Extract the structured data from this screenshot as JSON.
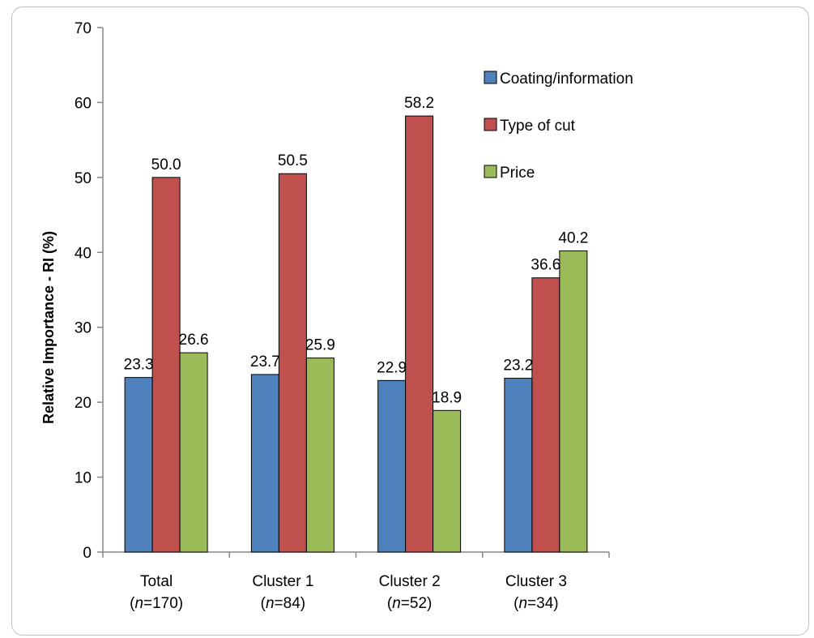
{
  "chart_data": {
    "type": "bar",
    "ylabel": "Relative Importance - RI (%)",
    "xlabel": "",
    "ylim": [
      0,
      70
    ],
    "yticks": [
      0,
      10,
      20,
      30,
      40,
      50,
      60,
      70
    ],
    "categories": [
      {
        "name": "Total",
        "n": "170"
      },
      {
        "name": "Cluster 1",
        "n": "84"
      },
      {
        "name": "Cluster 2",
        "n": "52"
      },
      {
        "name": "Cluster 3",
        "n": "34"
      }
    ],
    "series": [
      {
        "name": "Coating/information",
        "color": "#4f81bd",
        "values": [
          23.3,
          23.7,
          22.9,
          23.2
        ],
        "labels": [
          "23.3",
          "23.7",
          "22.9",
          "23.2"
        ]
      },
      {
        "name": "Type of cut",
        "color": "#c0504d",
        "values": [
          50.0,
          50.5,
          58.2,
          36.6
        ],
        "labels": [
          "50.0",
          "50.5",
          "58.2",
          "36.6"
        ]
      },
      {
        "name": "Price",
        "color": "#9bbb59",
        "values": [
          26.6,
          25.9,
          18.9,
          40.2
        ],
        "labels": [
          "26.6",
          "25.9",
          "18.9",
          "40.2"
        ]
      }
    ],
    "legend_position": "top-right",
    "grid": false
  }
}
